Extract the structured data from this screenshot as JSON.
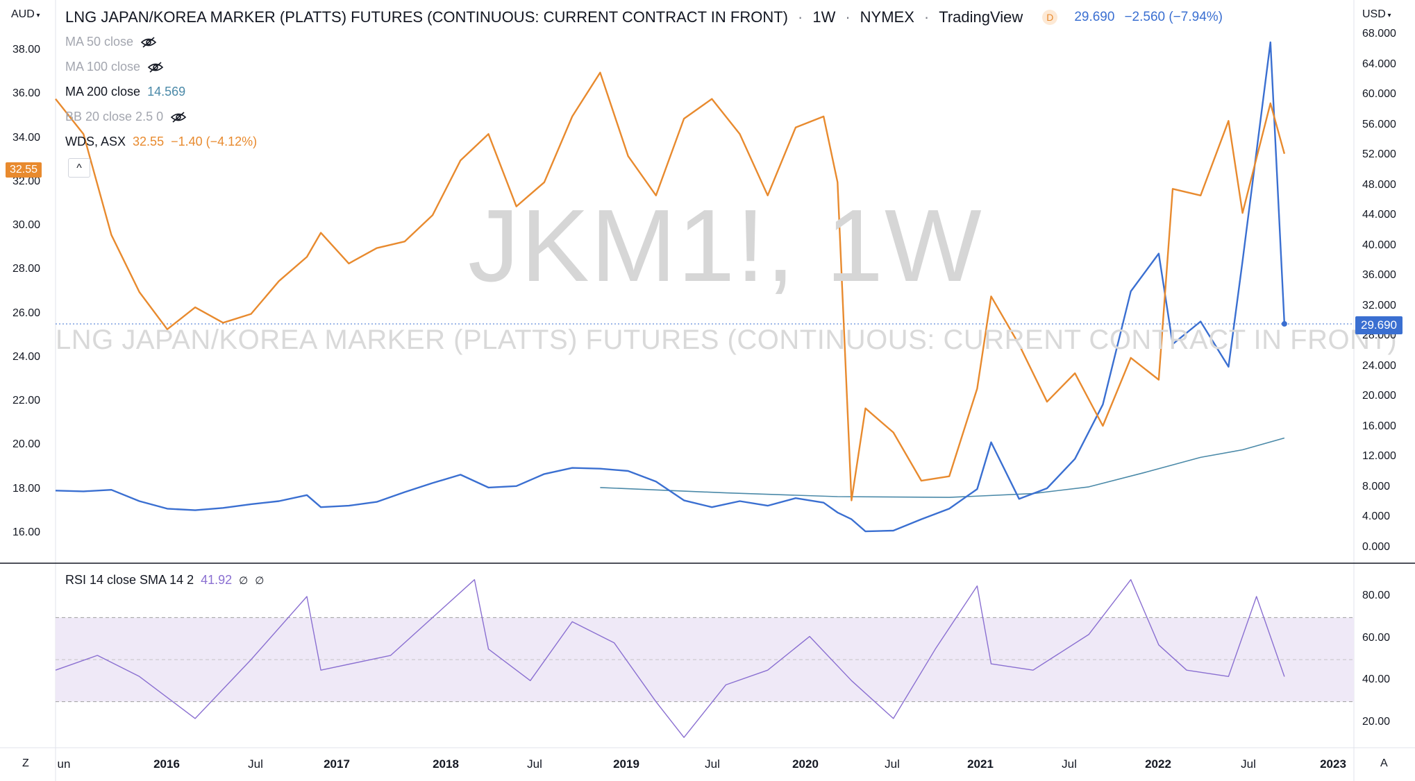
{
  "header": {
    "title": "LNG JAPAN/KOREA MARKER (PLATTS) FUTURES (CONTINUOUS: CURRENT CONTRACT IN FRONT)",
    "sep1": "·",
    "interval": "1W",
    "sep2": "·",
    "exchange": "NYMEX",
    "sep3": "·",
    "source": "TradingView",
    "d_badge": "D",
    "last": "29.690",
    "change": "−2.560 (−7.94%)"
  },
  "legend": {
    "ma50": "MA 50 close",
    "ma100": "MA 100 close",
    "ma200": "MA 200 close",
    "ma200_value": "14.569",
    "bb": "BB 20 close 2.5 0",
    "wds_label": "WDS, ASX",
    "wds_value": "32.55",
    "wds_change": "−1.40 (−4.12%)",
    "collapse": "^"
  },
  "watermark": {
    "symbol": "JKM1!, 1W",
    "desc": "LNG JAPAN/KOREA MARKER (PLATTS) FUTURES (CONTINUOUS: CURRENT CONTRACT IN FRONT)"
  },
  "axes": {
    "left_currency": "AUD",
    "right_currency": "USD",
    "left_ticks": [
      "38.00",
      "36.00",
      "34.00",
      "32.00",
      "30.00",
      "28.00",
      "26.00",
      "24.00",
      "22.00",
      "20.00",
      "18.00",
      "16.00"
    ],
    "right_ticks": [
      "68.000",
      "64.000",
      "60.000",
      "56.000",
      "52.000",
      "48.000",
      "44.000",
      "40.000",
      "36.000",
      "32.000",
      "28.000",
      "24.000",
      "20.000",
      "16.000",
      "12.000",
      "8.000",
      "4.000",
      "0.000"
    ],
    "left_badge": "32.55",
    "right_badge": "29.690",
    "x_labels": [
      {
        "text": "un",
        "bold": false
      },
      {
        "text": "2016",
        "bold": true
      },
      {
        "text": "Jul",
        "bold": false
      },
      {
        "text": "2017",
        "bold": true
      },
      {
        "text": "2018",
        "bold": true
      },
      {
        "text": "Jul",
        "bold": false
      },
      {
        "text": "2019",
        "bold": true
      },
      {
        "text": "Jul",
        "bold": false
      },
      {
        "text": "2020",
        "bold": true
      },
      {
        "text": "Jul",
        "bold": false
      },
      {
        "text": "2021",
        "bold": true
      },
      {
        "text": "Jul",
        "bold": false
      },
      {
        "text": "2022",
        "bold": true
      },
      {
        "text": "Jul",
        "bold": false
      },
      {
        "text": "2023",
        "bold": true
      }
    ],
    "corner_left": "Z",
    "corner_right": "A"
  },
  "rsi": {
    "label": "RSI 14 close SMA 14 2",
    "value": "41.92",
    "na1": "∅",
    "na2": "∅",
    "ticks": [
      "80.00",
      "60.00",
      "40.00",
      "20.00"
    ],
    "upper_band": 70,
    "lower_band": 30,
    "mid_band": 50
  },
  "colors": {
    "jkm": "#3a6fd1",
    "wds": "#e88a2e",
    "ma200": "#4a89a8",
    "rsi": "#8a6fd1",
    "rsi_band": "#ede7f6"
  },
  "chart_data": {
    "type": "line",
    "x_range": [
      "2015-06",
      "2022-10"
    ],
    "series": [
      {
        "name": "WDS, ASX",
        "axis": "AUD",
        "x": [
          "2015-06",
          "2015-08",
          "2015-10",
          "2015-12",
          "2016-02",
          "2016-04",
          "2016-06",
          "2016-08",
          "2016-10",
          "2016-12",
          "2017-01",
          "2017-03",
          "2017-05",
          "2017-07",
          "2017-09",
          "2017-11",
          "2018-01",
          "2018-03",
          "2018-05",
          "2018-07",
          "2018-09",
          "2018-11",
          "2019-01",
          "2019-03",
          "2019-05",
          "2019-07",
          "2019-09",
          "2019-11",
          "2020-01",
          "2020-02",
          "2020-03",
          "2020-04",
          "2020-06",
          "2020-08",
          "2020-10",
          "2020-12",
          "2021-01",
          "2021-03",
          "2021-05",
          "2021-07",
          "2021-09",
          "2021-11",
          "2022-01",
          "2022-02",
          "2022-04",
          "2022-06",
          "2022-07",
          "2022-09",
          "2022-10"
        ],
        "values": [
          35.8,
          34.2,
          29.6,
          27.0,
          25.3,
          26.3,
          25.6,
          26.0,
          27.5,
          28.6,
          29.7,
          28.3,
          29.0,
          29.3,
          30.5,
          33.0,
          34.2,
          30.9,
          32.0,
          35.0,
          37.0,
          33.2,
          31.4,
          34.9,
          35.8,
          34.2,
          31.4,
          34.5,
          35.0,
          32.0,
          17.5,
          21.7,
          20.6,
          18.4,
          18.6,
          22.6,
          26.8,
          24.6,
          22.0,
          23.3,
          20.9,
          24.0,
          23.0,
          31.7,
          31.4,
          34.8,
          30.6,
          35.6,
          33.3
        ]
      },
      {
        "name": "LNG JAPAN/KOREA MARKER (PLATTS) FUTURES (CONTINUOUS: CURRENT CONTRACT IN FRONT)",
        "axis": "USD",
        "x": [
          "2015-06",
          "2015-08",
          "2015-10",
          "2015-12",
          "2016-02",
          "2016-04",
          "2016-06",
          "2016-08",
          "2016-10",
          "2016-12",
          "2017-01",
          "2017-03",
          "2017-05",
          "2017-07",
          "2017-09",
          "2017-11",
          "2018-01",
          "2018-03",
          "2018-05",
          "2018-07",
          "2018-09",
          "2018-11",
          "2019-01",
          "2019-03",
          "2019-05",
          "2019-07",
          "2019-09",
          "2019-11",
          "2020-01",
          "2020-02",
          "2020-03",
          "2020-04",
          "2020-06",
          "2020-08",
          "2020-10",
          "2020-12",
          "2021-01",
          "2021-03",
          "2021-05",
          "2021-07",
          "2021-09",
          "2021-11",
          "2022-01",
          "2022-02",
          "2022-04",
          "2022-06",
          "2022-07",
          "2022-09",
          "2022-10"
        ],
        "values": [
          7.6,
          7.5,
          7.7,
          6.2,
          5.2,
          5.0,
          5.3,
          5.8,
          6.2,
          7.0,
          5.4,
          5.6,
          6.1,
          7.4,
          8.6,
          9.7,
          8.0,
          8.2,
          9.8,
          10.6,
          10.5,
          10.2,
          8.8,
          6.3,
          5.4,
          6.2,
          5.6,
          6.6,
          6.0,
          4.7,
          3.8,
          2.2,
          2.3,
          3.8,
          5.2,
          7.8,
          14.0,
          6.5,
          7.9,
          11.8,
          19.0,
          34.0,
          39.0,
          27.0,
          30.0,
          24.0,
          38.0,
          67.0,
          29.69
        ]
      },
      {
        "name": "MA 200 close",
        "axis": "USD",
        "x": [
          "2018-09",
          "2019-06",
          "2020-02",
          "2020-10",
          "2021-04",
          "2021-08",
          "2021-12",
          "2022-04",
          "2022-07",
          "2022-10"
        ],
        "values": [
          8.0,
          7.3,
          6.8,
          6.7,
          7.2,
          8.1,
          10.0,
          12.0,
          13.0,
          14.569
        ]
      }
    ],
    "rsi": {
      "name": "RSI 14 close SMA 14 2",
      "x": [
        "2015-06",
        "2015-09",
        "2015-12",
        "2016-04",
        "2016-08",
        "2016-12",
        "2017-01",
        "2017-06",
        "2017-12",
        "2018-01",
        "2018-04",
        "2018-07",
        "2018-10",
        "2019-01",
        "2019-03",
        "2019-06",
        "2019-09",
        "2019-12",
        "2020-03",
        "2020-06",
        "2020-09",
        "2020-12",
        "2021-01",
        "2021-04",
        "2021-08",
        "2021-11",
        "2022-01",
        "2022-03",
        "2022-06",
        "2022-08",
        "2022-10"
      ],
      "values": [
        45,
        52,
        42,
        22,
        50,
        80,
        45,
        52,
        88,
        55,
        40,
        68,
        58,
        30,
        13,
        38,
        45,
        61,
        40,
        22,
        55,
        85,
        48,
        45,
        62,
        88,
        57,
        45,
        42,
        80,
        41.92
      ]
    }
  }
}
